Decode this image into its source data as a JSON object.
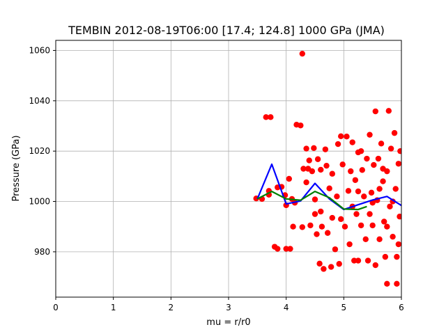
{
  "chart_data": {
    "type": "scatter",
    "title": "TEMBIN 2012-08-19T06:00 [17.4; 124.8] 1000 GPa (JMA)",
    "xlabel": "mu = r/r0",
    "ylabel": "Pressure (GPa)",
    "xlim": [
      0,
      6
    ],
    "ylim": [
      962,
      1064
    ],
    "x_ticks": [
      0,
      1,
      2,
      3,
      4,
      5,
      6
    ],
    "y_ticks": [
      980,
      1000,
      1020,
      1040,
      1060
    ],
    "grid": true,
    "colors": {
      "scatter": "#ff0000",
      "blue_line": "#0000ff",
      "green_line": "#008000"
    },
    "series": [
      {
        "kind": "scatter",
        "points": [
          [
            3.48,
            1001.2
          ],
          [
            3.58,
            1001.0
          ],
          [
            3.65,
            1033.5
          ],
          [
            3.73,
            1033.5
          ],
          [
            3.7,
            1004.2
          ],
          [
            3.7,
            1002.7
          ],
          [
            3.8,
            982.0
          ],
          [
            3.85,
            981.2
          ],
          [
            3.85,
            1005.6
          ],
          [
            3.92,
            1005.8
          ],
          [
            3.98,
            1002.5
          ],
          [
            4.0,
            998.5
          ],
          [
            4.0,
            981.2
          ],
          [
            4.07,
            981.2
          ],
          [
            4.05,
            1009.0
          ],
          [
            4.1,
            1001.0
          ],
          [
            4.12,
            990.0
          ],
          [
            4.15,
            999.5
          ],
          [
            4.18,
            1030.5
          ],
          [
            4.25,
            1030.2
          ],
          [
            4.28,
            1058.7
          ],
          [
            4.28,
            989.8
          ],
          [
            4.3,
            1013.0
          ],
          [
            4.35,
            1021.0
          ],
          [
            4.35,
            1007.6
          ],
          [
            4.38,
            1013.0
          ],
          [
            4.4,
            1016.3
          ],
          [
            4.42,
            990.5
          ],
          [
            4.45,
            1012.0
          ],
          [
            4.48,
            1021.2
          ],
          [
            4.5,
            1000.8
          ],
          [
            4.5,
            995.0
          ],
          [
            4.53,
            987.0
          ],
          [
            4.55,
            1016.8
          ],
          [
            4.58,
            975.3
          ],
          [
            4.6,
            1012.6
          ],
          [
            4.62,
            990.0
          ],
          [
            4.65,
            973.2
          ],
          [
            4.68,
            1020.7
          ],
          [
            4.7,
            1014.2
          ],
          [
            4.72,
            987.5
          ],
          [
            4.75,
            1005.2
          ],
          [
            4.78,
            974.0
          ],
          [
            4.8,
            1011.0
          ],
          [
            4.8,
            993.5
          ],
          [
            4.85,
            981.0
          ],
          [
            4.88,
            1002.0
          ],
          [
            4.9,
            1022.8
          ],
          [
            4.92,
            975.2
          ],
          [
            4.95,
            1025.9
          ],
          [
            4.98,
            1014.7
          ],
          [
            5.02,
            990.0
          ],
          [
            5.05,
            1025.8
          ],
          [
            5.08,
            1004.2
          ],
          [
            5.1,
            983.0
          ],
          [
            5.12,
            1012.0
          ],
          [
            5.15,
            1023.5
          ],
          [
            5.18,
            976.5
          ],
          [
            5.2,
            1008.5
          ],
          [
            5.22,
            995.0
          ],
          [
            5.25,
            1019.5
          ],
          [
            5.25,
            976.5
          ],
          [
            5.3,
            990.5
          ],
          [
            5.32,
            1012.5
          ],
          [
            5.35,
            1002.0
          ],
          [
            5.38,
            985.0
          ],
          [
            5.4,
            1017.0
          ],
          [
            5.42,
            976.5
          ],
          [
            5.45,
            1026.5
          ],
          [
            5.48,
            1003.5
          ],
          [
            5.5,
            990.5
          ],
          [
            5.52,
            1014.5
          ],
          [
            5.55,
            1035.8
          ],
          [
            5.55,
            974.7
          ],
          [
            5.58,
            1000.5
          ],
          [
            5.6,
            1017.0
          ],
          [
            5.62,
            985.0
          ],
          [
            5.65,
            1023.0
          ],
          [
            5.68,
            1008.0
          ],
          [
            5.7,
            992.0
          ],
          [
            5.72,
            978.0
          ],
          [
            5.75,
            967.3
          ],
          [
            5.75,
            1012.0
          ],
          [
            5.78,
            1036.0
          ],
          [
            5.8,
            998.0
          ],
          [
            5.82,
            1021.0
          ],
          [
            5.85,
            986.0
          ],
          [
            5.88,
            1027.2
          ],
          [
            5.9,
            1005.0
          ],
          [
            5.92,
            967.3
          ],
          [
            5.92,
            978.0
          ],
          [
            5.95,
            1015.0
          ],
          [
            5.97,
            994.0
          ],
          [
            5.98,
            1020.0
          ],
          [
            5.62,
            1005.0
          ],
          [
            5.3,
            1020.0
          ],
          [
            5.15,
            998.0
          ],
          [
            4.95,
            993.0
          ],
          [
            4.6,
            996.0
          ],
          [
            5.45,
            995.0
          ],
          [
            5.85,
            1000.0
          ],
          [
            5.75,
            990.0
          ],
          [
            5.95,
            983.0
          ],
          [
            5.68,
            1013.0
          ],
          [
            5.5,
            999.5
          ],
          [
            5.25,
            1004.0
          ]
        ]
      },
      {
        "kind": "line",
        "color": "blue",
        "points": [
          [
            3.5,
            1001.0
          ],
          [
            3.75,
            1014.8
          ],
          [
            4.0,
            999.0
          ],
          [
            4.25,
            1000.2
          ],
          [
            4.5,
            1007.2
          ],
          [
            4.75,
            1001.0
          ],
          [
            5.0,
            996.8
          ],
          [
            5.25,
            998.7
          ],
          [
            5.5,
            1000.6
          ],
          [
            5.75,
            1002.0
          ],
          [
            6.0,
            998.4
          ]
        ]
      },
      {
        "kind": "line",
        "color": "green",
        "points": [
          [
            3.5,
            1001.0
          ],
          [
            3.75,
            1004.0
          ],
          [
            4.0,
            1001.0
          ],
          [
            4.25,
            1000.5
          ],
          [
            4.5,
            1004.0
          ],
          [
            4.75,
            1001.5
          ],
          [
            5.0,
            997.0
          ],
          [
            5.25,
            996.8
          ],
          [
            5.4,
            998.0
          ]
        ]
      }
    ]
  }
}
